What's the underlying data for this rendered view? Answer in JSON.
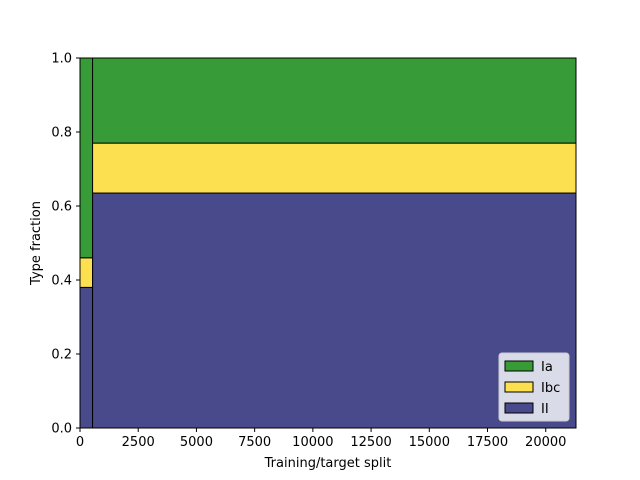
{
  "chart_data": {
    "type": "bar",
    "stacked": true,
    "xlabel": "Training/target split",
    "ylabel": "Type fraction",
    "xlim": [
      0,
      21300
    ],
    "ylim": [
      0,
      1.0
    ],
    "x_ticks": [
      0,
      2500,
      5000,
      7500,
      10000,
      12500,
      15000,
      17500,
      20000
    ],
    "x_tick_labels": [
      "0",
      "2500",
      "5000",
      "7500",
      "10000",
      "12500",
      "15000",
      "17500",
      "20000"
    ],
    "y_ticks": [
      0.0,
      0.2,
      0.4,
      0.6,
      0.8,
      1.0
    ],
    "y_tick_labels": [
      "0.0",
      "0.2",
      "0.4",
      "0.6",
      "0.8",
      "1.0"
    ],
    "bins": [
      {
        "x_start": 0,
        "x_end": 540
      },
      {
        "x_start": 540,
        "x_end": 21300
      }
    ],
    "series": [
      {
        "name": "II",
        "color": "#484a8c",
        "values": [
          0.38,
          0.635
        ]
      },
      {
        "name": "Ibc",
        "color": "#fce050",
        "values": [
          0.08,
          0.135
        ]
      },
      {
        "name": "Ia",
        "color": "#379b37",
        "values": [
          0.54,
          0.23
        ]
      }
    ],
    "legend": {
      "placement": "lower-right",
      "order": [
        "Ia",
        "Ibc",
        "II"
      ]
    },
    "grid": false
  }
}
